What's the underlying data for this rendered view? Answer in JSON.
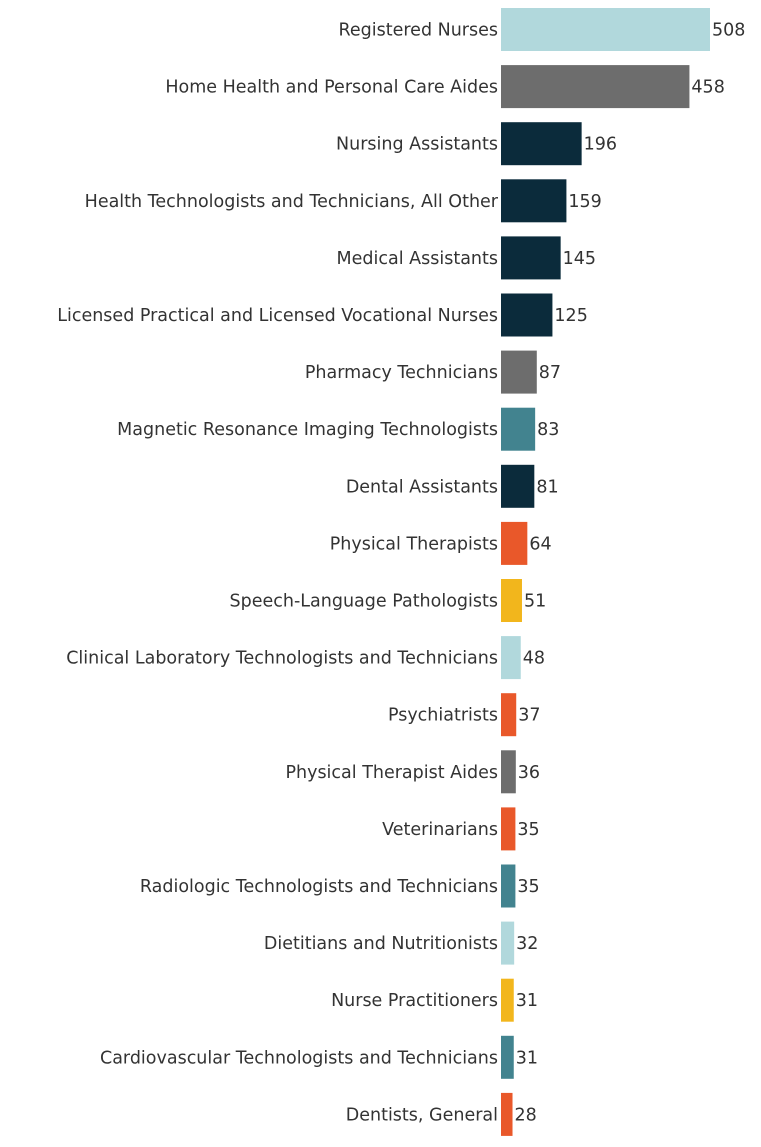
{
  "chart_data": {
    "type": "bar",
    "orientation": "horizontal",
    "title": "",
    "xlabel": "",
    "ylabel": "",
    "xlim": [
      0,
      508
    ],
    "grid": false,
    "categories": [
      "Registered Nurses",
      "Home Health and Personal Care Aides",
      "Nursing Assistants",
      "Health Technologists and Technicians, All Other",
      "Medical Assistants",
      "Licensed Practical and Licensed Vocational Nurses",
      "Pharmacy Technicians",
      "Magnetic Resonance Imaging Technologists",
      "Dental Assistants",
      "Physical Therapists",
      "Speech-Language Pathologists",
      "Clinical Laboratory Technologists and Technicians",
      "Psychiatrists",
      "Physical Therapist Aides",
      "Veterinarians",
      "Radiologic Technologists and Technicians",
      "Dietitians and Nutritionists",
      "Nurse Practitioners",
      "Cardiovascular Technologists and Technicians",
      "Dentists, General"
    ],
    "values": [
      508,
      458,
      196,
      159,
      145,
      125,
      87,
      83,
      81,
      64,
      51,
      48,
      37,
      36,
      35,
      35,
      32,
      31,
      31,
      28
    ],
    "colors": [
      "#b1d8dc",
      "#6d6d6d",
      "#0b2b3b",
      "#0b2b3b",
      "#0b2b3b",
      "#0b2b3b",
      "#6d6d6d",
      "#42838f",
      "#0b2b3b",
      "#e9582a",
      "#f2b61c",
      "#b1d8dc",
      "#e9582a",
      "#6d6d6d",
      "#e9582a",
      "#42838f",
      "#b1d8dc",
      "#f2b61c",
      "#42838f",
      "#e9582a"
    ]
  }
}
